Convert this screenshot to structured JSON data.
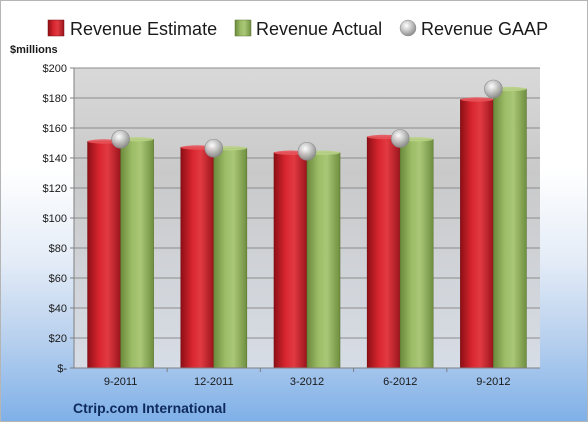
{
  "chart_data": {
    "type": "bar",
    "ylabel": "$millions",
    "footer": "Ctrip.com International",
    "categories": [
      "9-2011",
      "12-2011",
      "3-2012",
      "6-2012",
      "9-2012"
    ],
    "ylim": [
      0,
      200
    ],
    "yticks": [
      "$-",
      "$20",
      "$40",
      "$60",
      "$80",
      "$100",
      "$120",
      "$140",
      "$160",
      "$180",
      "$200"
    ],
    "legend_position": "top",
    "grid": true,
    "series": [
      {
        "name": "Revenue Estimate",
        "kind": "bar",
        "color": "#c0202a",
        "values": [
          151,
          147,
          143.5,
          154,
          179
        ]
      },
      {
        "name": "Revenue Actual",
        "kind": "bar",
        "color": "#8cad5a",
        "values": [
          152.5,
          146.5,
          143.5,
          152.5,
          186
        ]
      },
      {
        "name": "Revenue GAAP",
        "kind": "marker",
        "color": "#b8b8b8",
        "values": [
          152.5,
          146.5,
          144.5,
          153,
          186
        ]
      }
    ]
  }
}
